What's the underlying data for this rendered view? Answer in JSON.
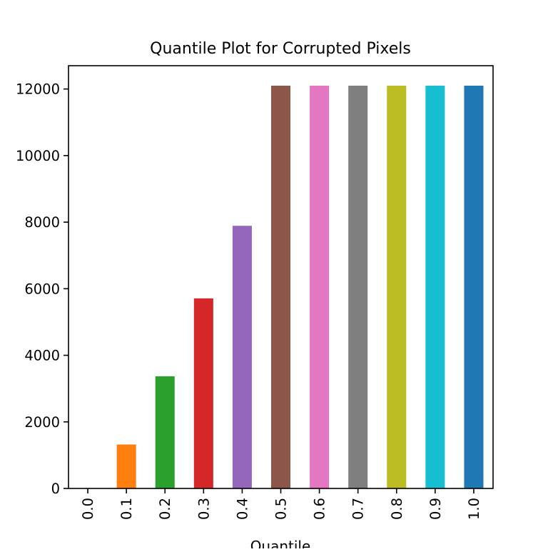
{
  "chart_data": {
    "type": "bar",
    "title": "Quantile Plot for Corrupted Pixels",
    "xlabel": "Quantile",
    "ylabel": "",
    "categories": [
      "0.0",
      "0.1",
      "0.2",
      "0.3",
      "0.4",
      "0.5",
      "0.6",
      "0.7",
      "0.8",
      "0.9",
      "1.0"
    ],
    "values": [
      0,
      1320,
      3370,
      5710,
      7890,
      12100,
      12100,
      12100,
      12100,
      12100,
      12100
    ],
    "ylim": [
      0,
      12700
    ],
    "yticks": [
      0,
      2000,
      4000,
      6000,
      8000,
      10000,
      12000
    ],
    "ytick_labels": [
      "0",
      "2000",
      "4000",
      "6000",
      "8000",
      "10000",
      "12000"
    ],
    "bar_colors": [
      "#1f77b4",
      "#ff7f0e",
      "#2ca02c",
      "#d62728",
      "#9467bd",
      "#8c564b",
      "#e377c2",
      "#7f7f7f",
      "#bcbd22",
      "#17becf",
      "#1f77b4"
    ],
    "grid": false,
    "legend": "none"
  }
}
